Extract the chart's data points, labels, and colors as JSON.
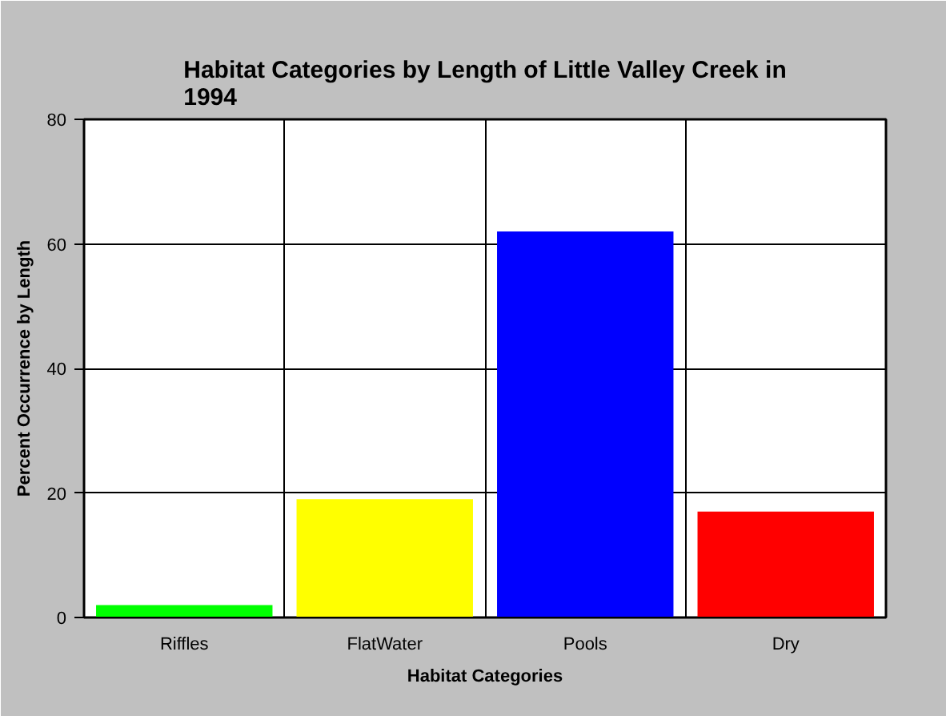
{
  "chart_data": {
    "type": "bar",
    "title": "Habitat Categories by Length of Little Valley Creek in 1994",
    "xlabel": "Habitat Categories",
    "ylabel": "Percent Occurrence by Length",
    "categories": [
      "Riffles",
      "FlatWater",
      "Pools",
      "Dry"
    ],
    "values": [
      2,
      19,
      62,
      17
    ],
    "colors": [
      "#00ff00",
      "#ffff00",
      "#0000ff",
      "#ff0000"
    ],
    "ylim": [
      0,
      80
    ],
    "yticks": [
      0,
      20,
      40,
      60,
      80
    ],
    "grid": true
  }
}
